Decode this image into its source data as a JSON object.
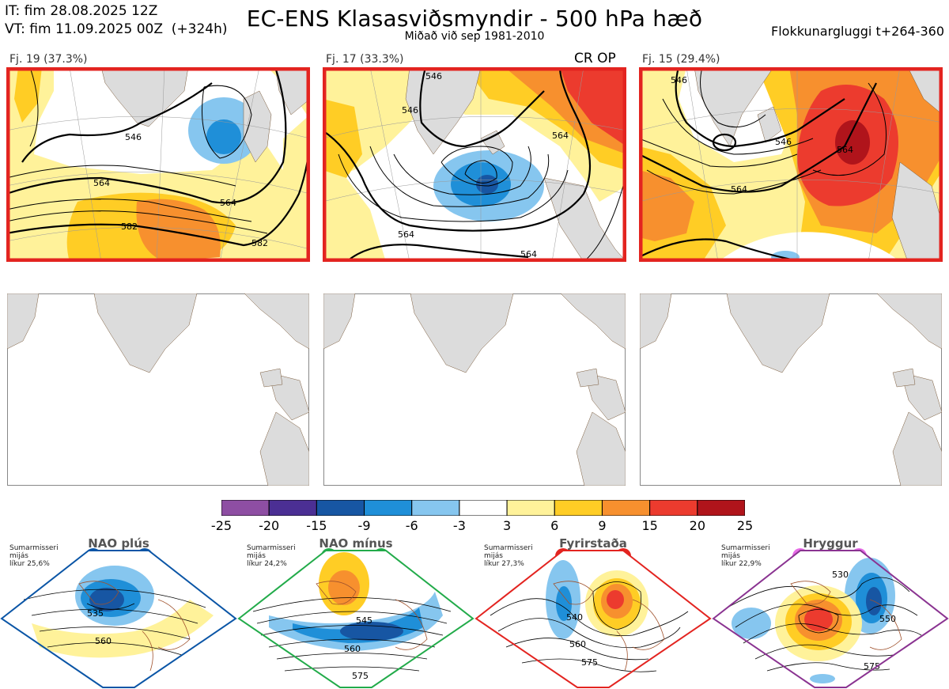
{
  "header": {
    "it_line": "IT: fim 28.08.2025 12Z",
    "vt_line": "VT: fim 11.09.2025 00Z  (+324h)",
    "title": "EC-ENS Klasasviðsmyndir - 500 hPa hæð",
    "subtitle": "Miðað við sep 1981-2010",
    "window": "Flokkunargluggi t+264-360"
  },
  "panels": [
    {
      "label": "Fj. 19 (37.3%)",
      "tag": "",
      "contours": [
        "546",
        "564",
        "564",
        "582",
        "582"
      ],
      "frame_color": "#e32420"
    },
    {
      "label": "Fj. 17 (33.3%)",
      "tag": "CR OP",
      "contours": [
        "546",
        "546",
        "564",
        "564",
        "564"
      ],
      "frame_color": "#e32420"
    },
    {
      "label": "Fj. 15 (29.4%)",
      "tag": "",
      "contours": [
        "546",
        "546",
        "564",
        "564"
      ],
      "frame_color": "#e32420"
    }
  ],
  "colorbar": {
    "colors": [
      "#8e4ea3",
      "#4b2f94",
      "#1756a3",
      "#1f8fd8",
      "#86c6ef",
      "#ffffff",
      "#fff29a",
      "#ffcd25",
      "#f7902e",
      "#ec3b2e",
      "#b0141b"
    ],
    "labels": [
      "-25",
      "-20",
      "-15",
      "-9",
      "-6",
      "-3",
      "3",
      "6",
      "9",
      "15",
      "20",
      "25"
    ]
  },
  "regimes": [
    {
      "title": "NAO plús",
      "info": [
        "Sumarmisseri",
        "mijás",
        "líkur 25,6%"
      ],
      "dot_color": "#0a55a6",
      "frame_color": "#0a55a6",
      "contours": [
        "535",
        "560"
      ]
    },
    {
      "title": "NAO mínus",
      "info": [
        "Sumarmisseri",
        "mijás",
        "líkur 24,2%"
      ],
      "dot_color": "#22ab4a",
      "frame_color": "#22ab4a",
      "contours": [
        "545",
        "560",
        "575"
      ]
    },
    {
      "title": "Fyrirstaða",
      "info": [
        "Sumarmisseri",
        "mijás",
        "líkur 27,3%"
      ],
      "dot_color": "#e32420",
      "frame_color": "#e32420",
      "contours": [
        "540",
        "560",
        "575"
      ]
    },
    {
      "title": "Hryggur",
      "info": [
        "Sumarmisseri",
        "mijás",
        "líkur 22,9%"
      ],
      "dot_color": "#e66be6",
      "frame_color": "#8a3391",
      "contours": [
        "530",
        "550",
        "575"
      ]
    }
  ]
}
